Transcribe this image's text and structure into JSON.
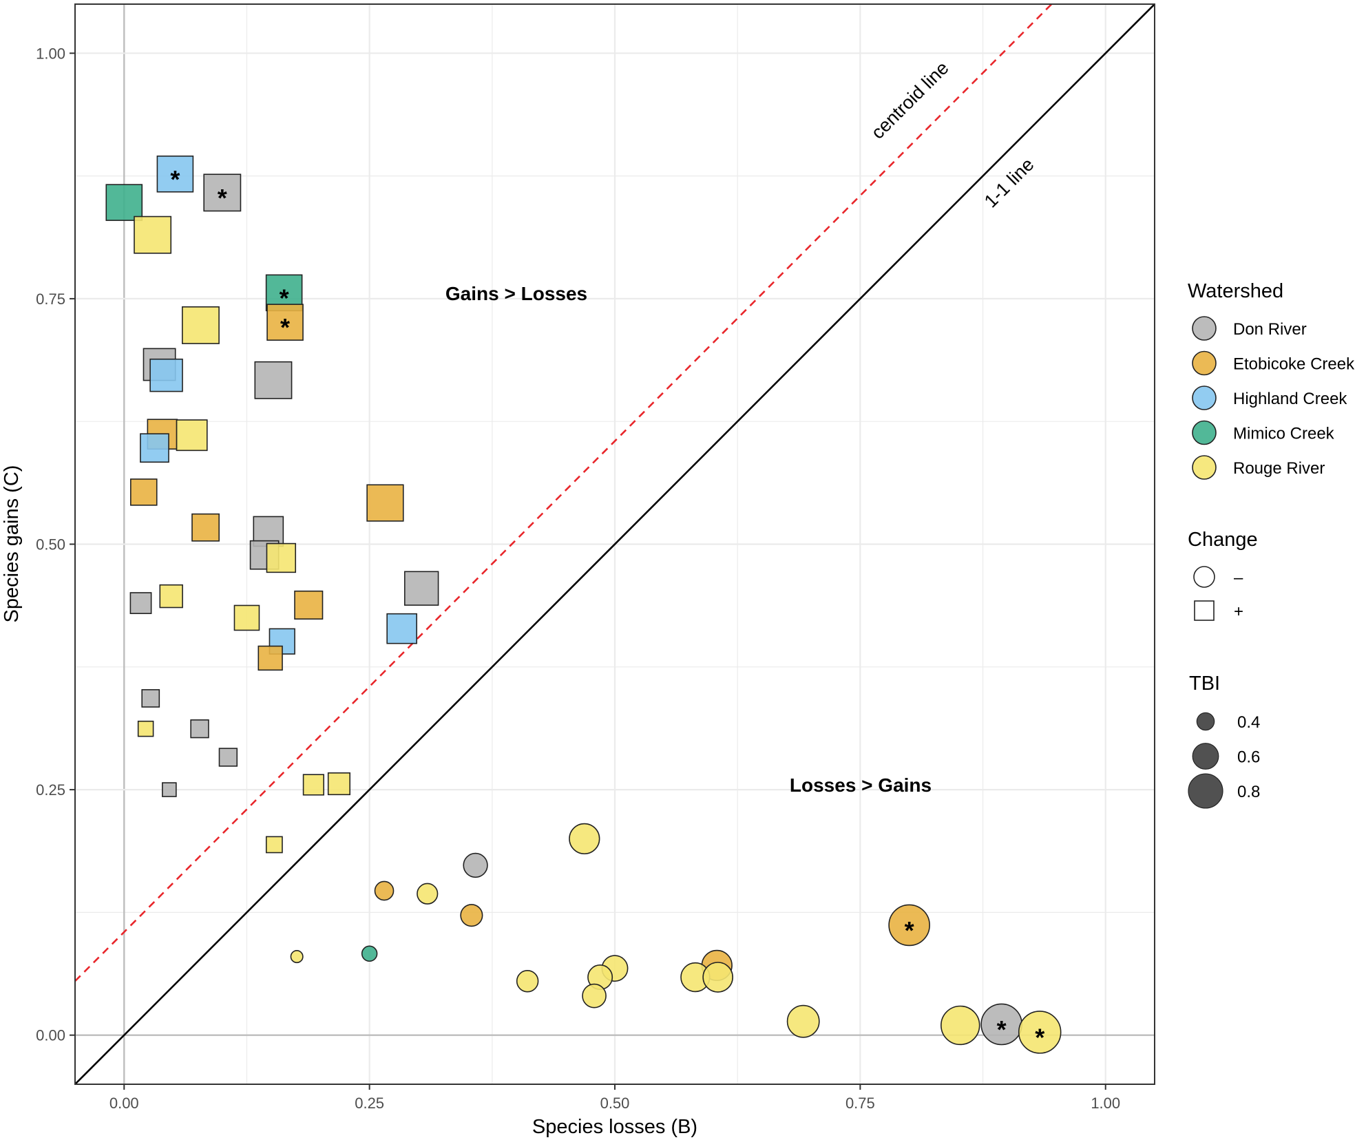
{
  "colors": {
    "Don River": "#b5b5b5",
    "Etobicoke Creek": "#e9b342",
    "Highland Creek": "#86c7ef",
    "Mimico Creek": "#3fb08d",
    "Rouge River": "#f5e571",
    "centroid_line": "#e8262b",
    "one_to_one_line": "#000000",
    "grid": "#ebebeb"
  },
  "chart_data": {
    "type": "scatter",
    "xlabel": "Species losses (B)",
    "ylabel": "Species gains (C)",
    "xlim": [
      -0.05,
      1.05
    ],
    "ylim": [
      -0.05,
      1.05
    ],
    "x_ticks": [
      0.0,
      0.25,
      0.5,
      0.75,
      1.0
    ],
    "x_tick_labels": [
      "0.00",
      "0.25",
      "0.50",
      "0.75",
      "1.00"
    ],
    "y_ticks": [
      0.0,
      0.25,
      0.5,
      0.75,
      1.0
    ],
    "y_tick_labels": [
      "0.00",
      "0.25",
      "0.50",
      "0.75",
      "1.00"
    ],
    "annotations": {
      "gains_gt_losses": "Gains > Losses",
      "losses_gt_gains": "Losses > Gains",
      "centroid_label": "centroid line",
      "one_to_one_label": "1-1 line"
    },
    "reference_lines": {
      "one_to_one": {
        "intercept": 0.0,
        "slope": 1.0
      },
      "centroid": {
        "intercept": 0.105,
        "slope": 1.0
      }
    },
    "legend": {
      "watershed_title": "Watershed",
      "watersheds": [
        "Don River",
        "Etobicoke Creek",
        "Highland Creek",
        "Mimico Creek",
        "Rouge River"
      ],
      "change_title": "Change",
      "change_labels": [
        "–",
        "+"
      ],
      "tbi_title": "TBI",
      "tbi_values": [
        0.4,
        0.6,
        0.8
      ],
      "tbi_labels": [
        "0.4",
        "0.6",
        "0.8"
      ]
    },
    "points": [
      {
        "watershed": "Highland Creek",
        "change": "+",
        "B": 0.052,
        "C": 0.877,
        "tbi": 0.8,
        "sig": true
      },
      {
        "watershed": "Don River",
        "change": "+",
        "B": 0.1,
        "C": 0.858,
        "tbi": 0.82,
        "sig": true
      },
      {
        "watershed": "Mimico Creek",
        "change": "+",
        "B": 0.0,
        "C": 0.848,
        "tbi": 0.8,
        "sig": false
      },
      {
        "watershed": "Rouge River",
        "change": "+",
        "B": 0.029,
        "C": 0.815,
        "tbi": 0.82,
        "sig": false
      },
      {
        "watershed": "Mimico Creek",
        "change": "+",
        "B": 0.163,
        "C": 0.756,
        "tbi": 0.8,
        "sig": true
      },
      {
        "watershed": "Etobicoke Creek",
        "change": "+",
        "B": 0.164,
        "C": 0.726,
        "tbi": 0.8,
        "sig": true
      },
      {
        "watershed": "Rouge River",
        "change": "+",
        "B": 0.078,
        "C": 0.723,
        "tbi": 0.82,
        "sig": false
      },
      {
        "watershed": "Don River",
        "change": "+",
        "B": 0.036,
        "C": 0.683,
        "tbi": 0.71,
        "sig": false
      },
      {
        "watershed": "Highland Creek",
        "change": "+",
        "B": 0.043,
        "C": 0.672,
        "tbi": 0.72,
        "sig": false
      },
      {
        "watershed": "Don River",
        "change": "+",
        "B": 0.152,
        "C": 0.667,
        "tbi": 0.82,
        "sig": false
      },
      {
        "watershed": "Etobicoke Creek",
        "change": "+",
        "B": 0.039,
        "C": 0.612,
        "tbi": 0.66,
        "sig": false
      },
      {
        "watershed": "Rouge River",
        "change": "+",
        "B": 0.069,
        "C": 0.611,
        "tbi": 0.68,
        "sig": false
      },
      {
        "watershed": "Highland Creek",
        "change": "+",
        "B": 0.031,
        "C": 0.598,
        "tbi": 0.63,
        "sig": false
      },
      {
        "watershed": "Etobicoke Creek",
        "change": "+",
        "B": 0.02,
        "C": 0.553,
        "tbi": 0.58,
        "sig": false
      },
      {
        "watershed": "Etobicoke Creek",
        "change": "+",
        "B": 0.266,
        "C": 0.542,
        "tbi": 0.81,
        "sig": false
      },
      {
        "watershed": "Etobicoke Creek",
        "change": "+",
        "B": 0.083,
        "C": 0.517,
        "tbi": 0.6,
        "sig": false
      },
      {
        "watershed": "Don River",
        "change": "+",
        "B": 0.147,
        "C": 0.513,
        "tbi": 0.66,
        "sig": false
      },
      {
        "watershed": "Don River",
        "change": "+",
        "B": 0.143,
        "C": 0.489,
        "tbi": 0.63,
        "sig": false
      },
      {
        "watershed": "Rouge River",
        "change": "+",
        "B": 0.16,
        "C": 0.486,
        "tbi": 0.64,
        "sig": false
      },
      {
        "watershed": "Don River",
        "change": "+",
        "B": 0.303,
        "C": 0.455,
        "tbi": 0.75,
        "sig": false
      },
      {
        "watershed": "Rouge River",
        "change": "+",
        "B": 0.048,
        "C": 0.447,
        "tbi": 0.5,
        "sig": false
      },
      {
        "watershed": "Don River",
        "change": "+",
        "B": 0.017,
        "C": 0.44,
        "tbi": 0.46,
        "sig": false
      },
      {
        "watershed": "Etobicoke Creek",
        "change": "+",
        "B": 0.188,
        "C": 0.438,
        "tbi": 0.62,
        "sig": false
      },
      {
        "watershed": "Rouge River",
        "change": "+",
        "B": 0.125,
        "C": 0.425,
        "tbi": 0.55,
        "sig": false
      },
      {
        "watershed": "Highland Creek",
        "change": "+",
        "B": 0.283,
        "C": 0.414,
        "tbi": 0.66,
        "sig": false
      },
      {
        "watershed": "Highland Creek",
        "change": "+",
        "B": 0.161,
        "C": 0.401,
        "tbi": 0.56,
        "sig": false
      },
      {
        "watershed": "Etobicoke Creek",
        "change": "+",
        "B": 0.149,
        "C": 0.384,
        "tbi": 0.53,
        "sig": false
      },
      {
        "watershed": "Don River",
        "change": "+",
        "B": 0.027,
        "C": 0.343,
        "tbi": 0.38,
        "sig": false
      },
      {
        "watershed": "Rouge River",
        "change": "+",
        "B": 0.022,
        "C": 0.312,
        "tbi": 0.33,
        "sig": false
      },
      {
        "watershed": "Don River",
        "change": "+",
        "B": 0.077,
        "C": 0.312,
        "tbi": 0.39,
        "sig": false
      },
      {
        "watershed": "Don River",
        "change": "+",
        "B": 0.106,
        "C": 0.283,
        "tbi": 0.39,
        "sig": false
      },
      {
        "watershed": "Rouge River",
        "change": "+",
        "B": 0.193,
        "C": 0.255,
        "tbi": 0.45,
        "sig": false
      },
      {
        "watershed": "Rouge River",
        "change": "+",
        "B": 0.219,
        "C": 0.256,
        "tbi": 0.48,
        "sig": false
      },
      {
        "watershed": "Don River",
        "change": "+",
        "B": 0.046,
        "C": 0.25,
        "tbi": 0.3,
        "sig": false
      },
      {
        "watershed": "Rouge River",
        "change": "+",
        "B": 0.153,
        "C": 0.194,
        "tbi": 0.35,
        "sig": false
      },
      {
        "watershed": "Rouge River",
        "change": "-",
        "B": 0.469,
        "C": 0.2,
        "tbi": 0.67,
        "sig": false
      },
      {
        "watershed": "Don River",
        "change": "-",
        "B": 0.358,
        "C": 0.173,
        "tbi": 0.53,
        "sig": false
      },
      {
        "watershed": "Etobicoke Creek",
        "change": "-",
        "B": 0.265,
        "C": 0.147,
        "tbi": 0.41,
        "sig": false
      },
      {
        "watershed": "Rouge River",
        "change": "-",
        "B": 0.309,
        "C": 0.144,
        "tbi": 0.45,
        "sig": false
      },
      {
        "watershed": "Etobicoke Creek",
        "change": "-",
        "B": 0.354,
        "C": 0.122,
        "tbi": 0.48,
        "sig": false
      },
      {
        "watershed": "Etobicoke Creek",
        "change": "-",
        "B": 0.8,
        "C": 0.112,
        "tbi": 0.91,
        "sig": true
      },
      {
        "watershed": "Mimico Creek",
        "change": "-",
        "B": 0.25,
        "C": 0.083,
        "tbi": 0.33,
        "sig": false
      },
      {
        "watershed": "Rouge River",
        "change": "-",
        "B": 0.176,
        "C": 0.08,
        "tbi": 0.26,
        "sig": false
      },
      {
        "watershed": "Etobicoke Creek",
        "change": "-",
        "B": 0.604,
        "C": 0.071,
        "tbi": 0.67,
        "sig": false
      },
      {
        "watershed": "Rouge River",
        "change": "-",
        "B": 0.5,
        "C": 0.068,
        "tbi": 0.57,
        "sig": false
      },
      {
        "watershed": "Rouge River",
        "change": "-",
        "B": 0.485,
        "C": 0.059,
        "tbi": 0.54,
        "sig": false
      },
      {
        "watershed": "Rouge River",
        "change": "-",
        "B": 0.582,
        "C": 0.059,
        "tbi": 0.64,
        "sig": false
      },
      {
        "watershed": "Rouge River",
        "change": "-",
        "B": 0.605,
        "C": 0.059,
        "tbi": 0.66,
        "sig": false
      },
      {
        "watershed": "Rouge River",
        "change": "-",
        "B": 0.411,
        "C": 0.055,
        "tbi": 0.47,
        "sig": false
      },
      {
        "watershed": "Rouge River",
        "change": "-",
        "B": 0.479,
        "C": 0.04,
        "tbi": 0.52,
        "sig": false
      },
      {
        "watershed": "Rouge River",
        "change": "-",
        "B": 0.692,
        "C": 0.014,
        "tbi": 0.71,
        "sig": false
      },
      {
        "watershed": "Rouge River",
        "change": "-",
        "B": 0.852,
        "C": 0.01,
        "tbi": 0.86,
        "sig": false
      },
      {
        "watershed": "Don River",
        "change": "-",
        "B": 0.894,
        "C": 0.011,
        "tbi": 0.91,
        "sig": true
      },
      {
        "watershed": "Rouge River",
        "change": "-",
        "B": 0.933,
        "C": 0.003,
        "tbi": 0.94,
        "sig": true
      }
    ]
  }
}
